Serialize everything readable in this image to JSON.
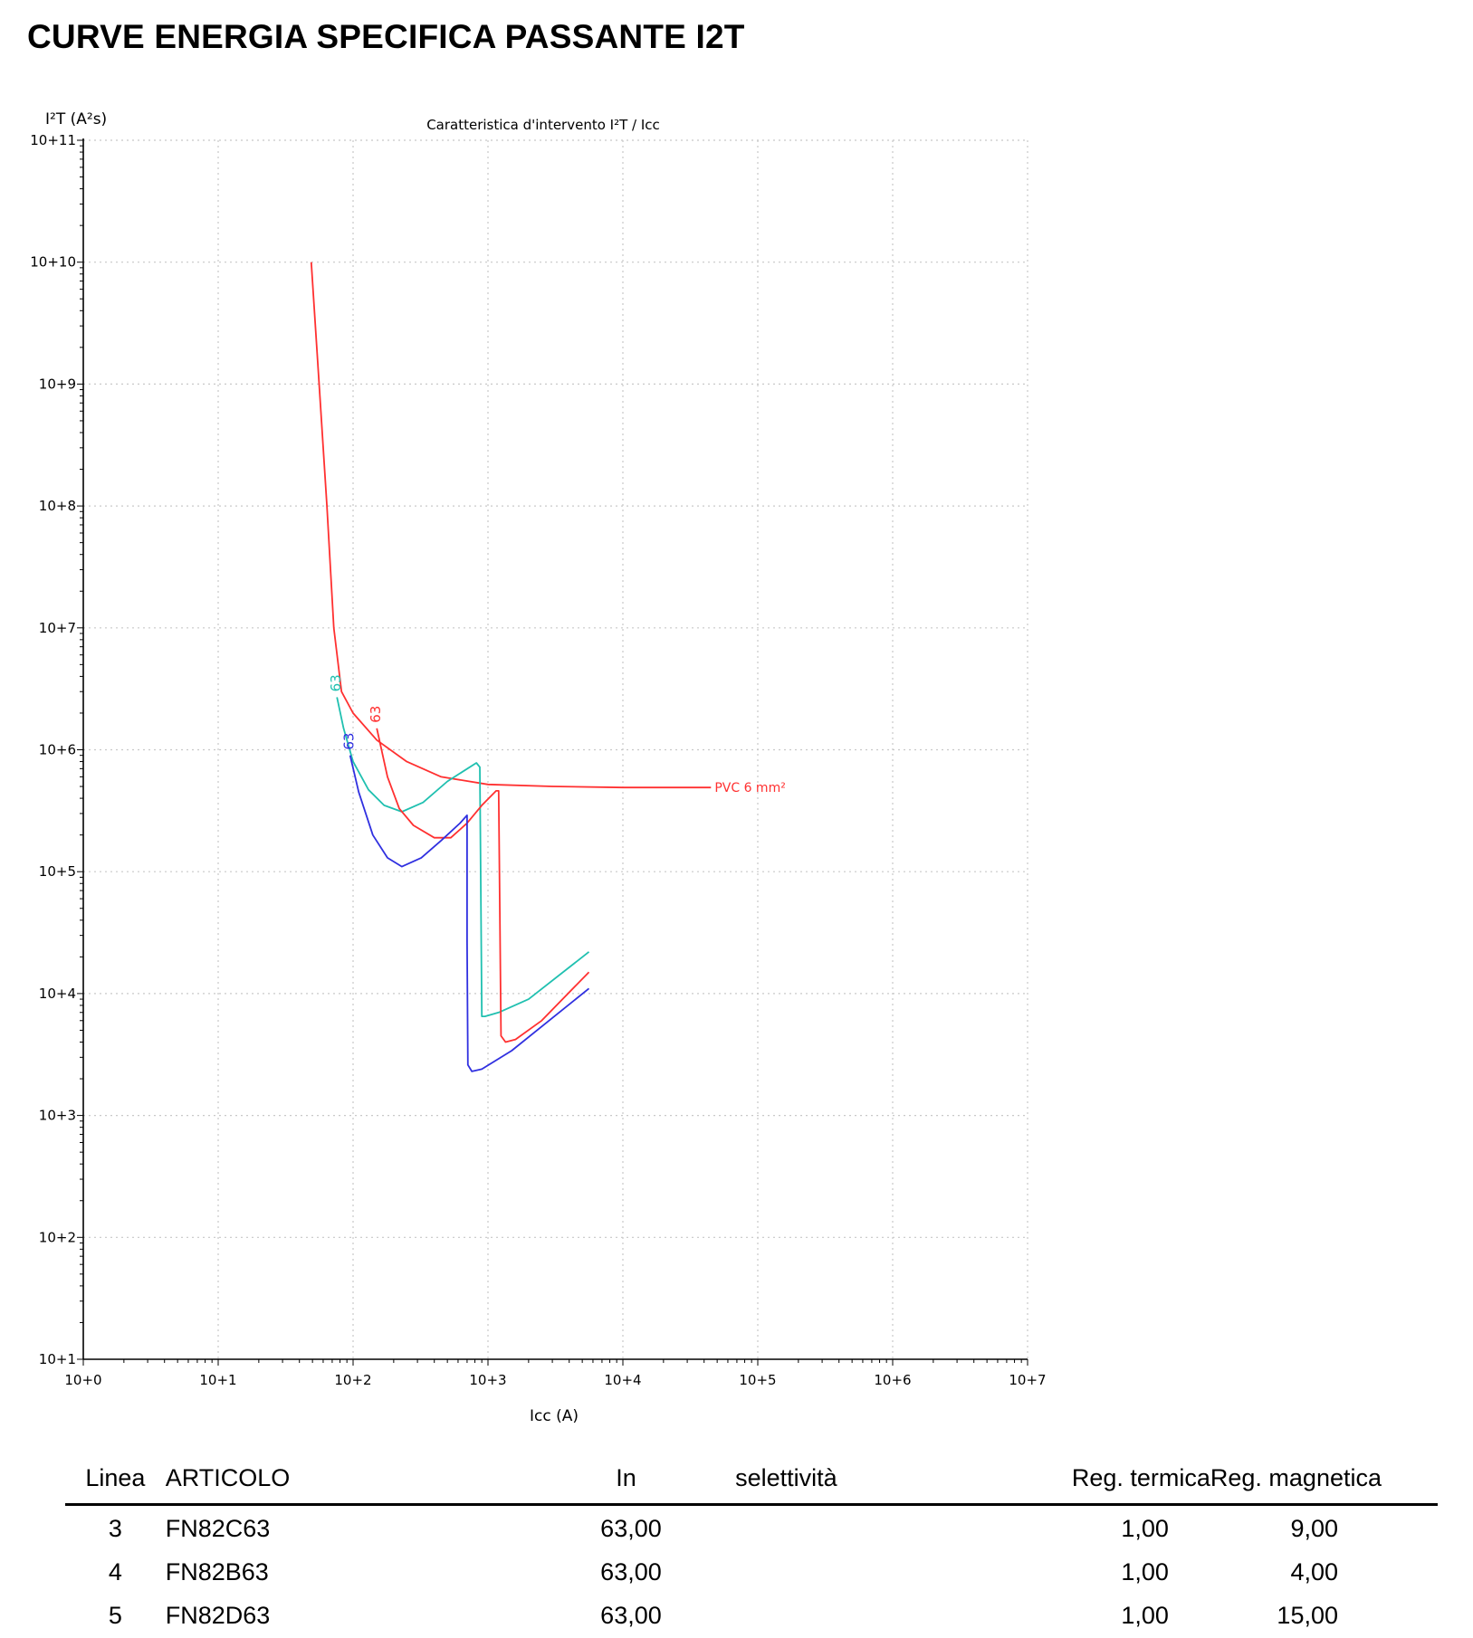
{
  "page": {
    "title": "CURVE ENERGIA SPECIFICA PASSANTE I2T"
  },
  "chart_data": {
    "type": "line",
    "title": "Caratteristica d'intervento I²T / Icc",
    "xlabel": "Icc (A)",
    "ylabel": "I²T (A²s)",
    "xscale": "log",
    "yscale": "log",
    "xlim": [
      1,
      10000000
    ],
    "ylim": [
      10,
      100000000000
    ],
    "grid": true,
    "x_ticks": [
      "10+0",
      "10+1",
      "10+2",
      "10+3",
      "10+4",
      "10+5",
      "10+6",
      "10+7"
    ],
    "y_ticks": [
      "10+1",
      "10+2",
      "10+3",
      "10+4",
      "10+5",
      "10+6",
      "10+7",
      "10+8",
      "10+9",
      "10+10",
      "10+11"
    ],
    "series": [
      {
        "name": "PVC 6 mm²",
        "color": "#ff3030",
        "points": [
          [
            49,
            10000000000
          ],
          [
            56,
            1000000000
          ],
          [
            64,
            100000000
          ],
          [
            72,
            10000000
          ],
          [
            82,
            3000000
          ],
          [
            100,
            2000000
          ],
          [
            150,
            1200000
          ],
          [
            250,
            800000
          ],
          [
            450,
            600000
          ],
          [
            1000,
            520000
          ],
          [
            3000,
            500000
          ],
          [
            10000,
            490000
          ],
          [
            45000,
            490000
          ]
        ]
      },
      {
        "name": "63",
        "color": "#20c0b0",
        "points": [
          [
            76,
            2700000
          ],
          [
            85,
            1500000
          ],
          [
            100,
            800000
          ],
          [
            130,
            470000
          ],
          [
            170,
            350000
          ],
          [
            230,
            310000
          ],
          [
            330,
            370000
          ],
          [
            500,
            550000
          ],
          [
            820,
            780000
          ],
          [
            870,
            720000
          ],
          [
            900,
            6500
          ],
          [
            950,
            6500
          ],
          [
            1200,
            7000
          ],
          [
            2000,
            9000
          ],
          [
            5600,
            22000
          ]
        ]
      },
      {
        "name": "63",
        "color": "#ff3030",
        "points": [
          [
            150,
            1500000
          ],
          [
            180,
            600000
          ],
          [
            220,
            330000
          ],
          [
            280,
            240000
          ],
          [
            400,
            190000
          ],
          [
            530,
            190000
          ],
          [
            700,
            250000
          ],
          [
            900,
            350000
          ],
          [
            1150,
            460000
          ],
          [
            1200,
            460000
          ],
          [
            1250,
            4500
          ],
          [
            1350,
            4000
          ],
          [
            1600,
            4200
          ],
          [
            2500,
            6000
          ],
          [
            5600,
            15000
          ]
        ]
      },
      {
        "name": "63",
        "color": "#3030e0",
        "points": [
          [
            95,
            900000
          ],
          [
            110,
            450000
          ],
          [
            140,
            200000
          ],
          [
            180,
            130000
          ],
          [
            230,
            110000
          ],
          [
            320,
            130000
          ],
          [
            450,
            180000
          ],
          [
            620,
            250000
          ],
          [
            700,
            290000
          ],
          [
            700,
            27000
          ],
          [
            710,
            2600
          ],
          [
            760,
            2300
          ],
          [
            900,
            2400
          ],
          [
            1500,
            3400
          ],
          [
            5600,
            11000
          ]
        ]
      }
    ]
  },
  "table": {
    "headers": {
      "linea": "Linea",
      "articolo": "ARTICOLO",
      "in": "In",
      "selettivita": "selettività",
      "reg_termica": "Reg. termica",
      "reg_magnetica": "Reg. magnetica"
    },
    "rows": [
      {
        "linea": "3",
        "articolo": "FN82C63",
        "in": "63,00",
        "selettivita": "",
        "reg_termica": "1,00",
        "reg_magnetica": "9,00"
      },
      {
        "linea": "4",
        "articolo": "FN82B63",
        "in": "63,00",
        "selettivita": "",
        "reg_termica": "1,00",
        "reg_magnetica": "4,00"
      },
      {
        "linea": "5",
        "articolo": "FN82D63",
        "in": "63,00",
        "selettivita": "",
        "reg_termica": "1,00",
        "reg_magnetica": "15,00"
      }
    ]
  }
}
